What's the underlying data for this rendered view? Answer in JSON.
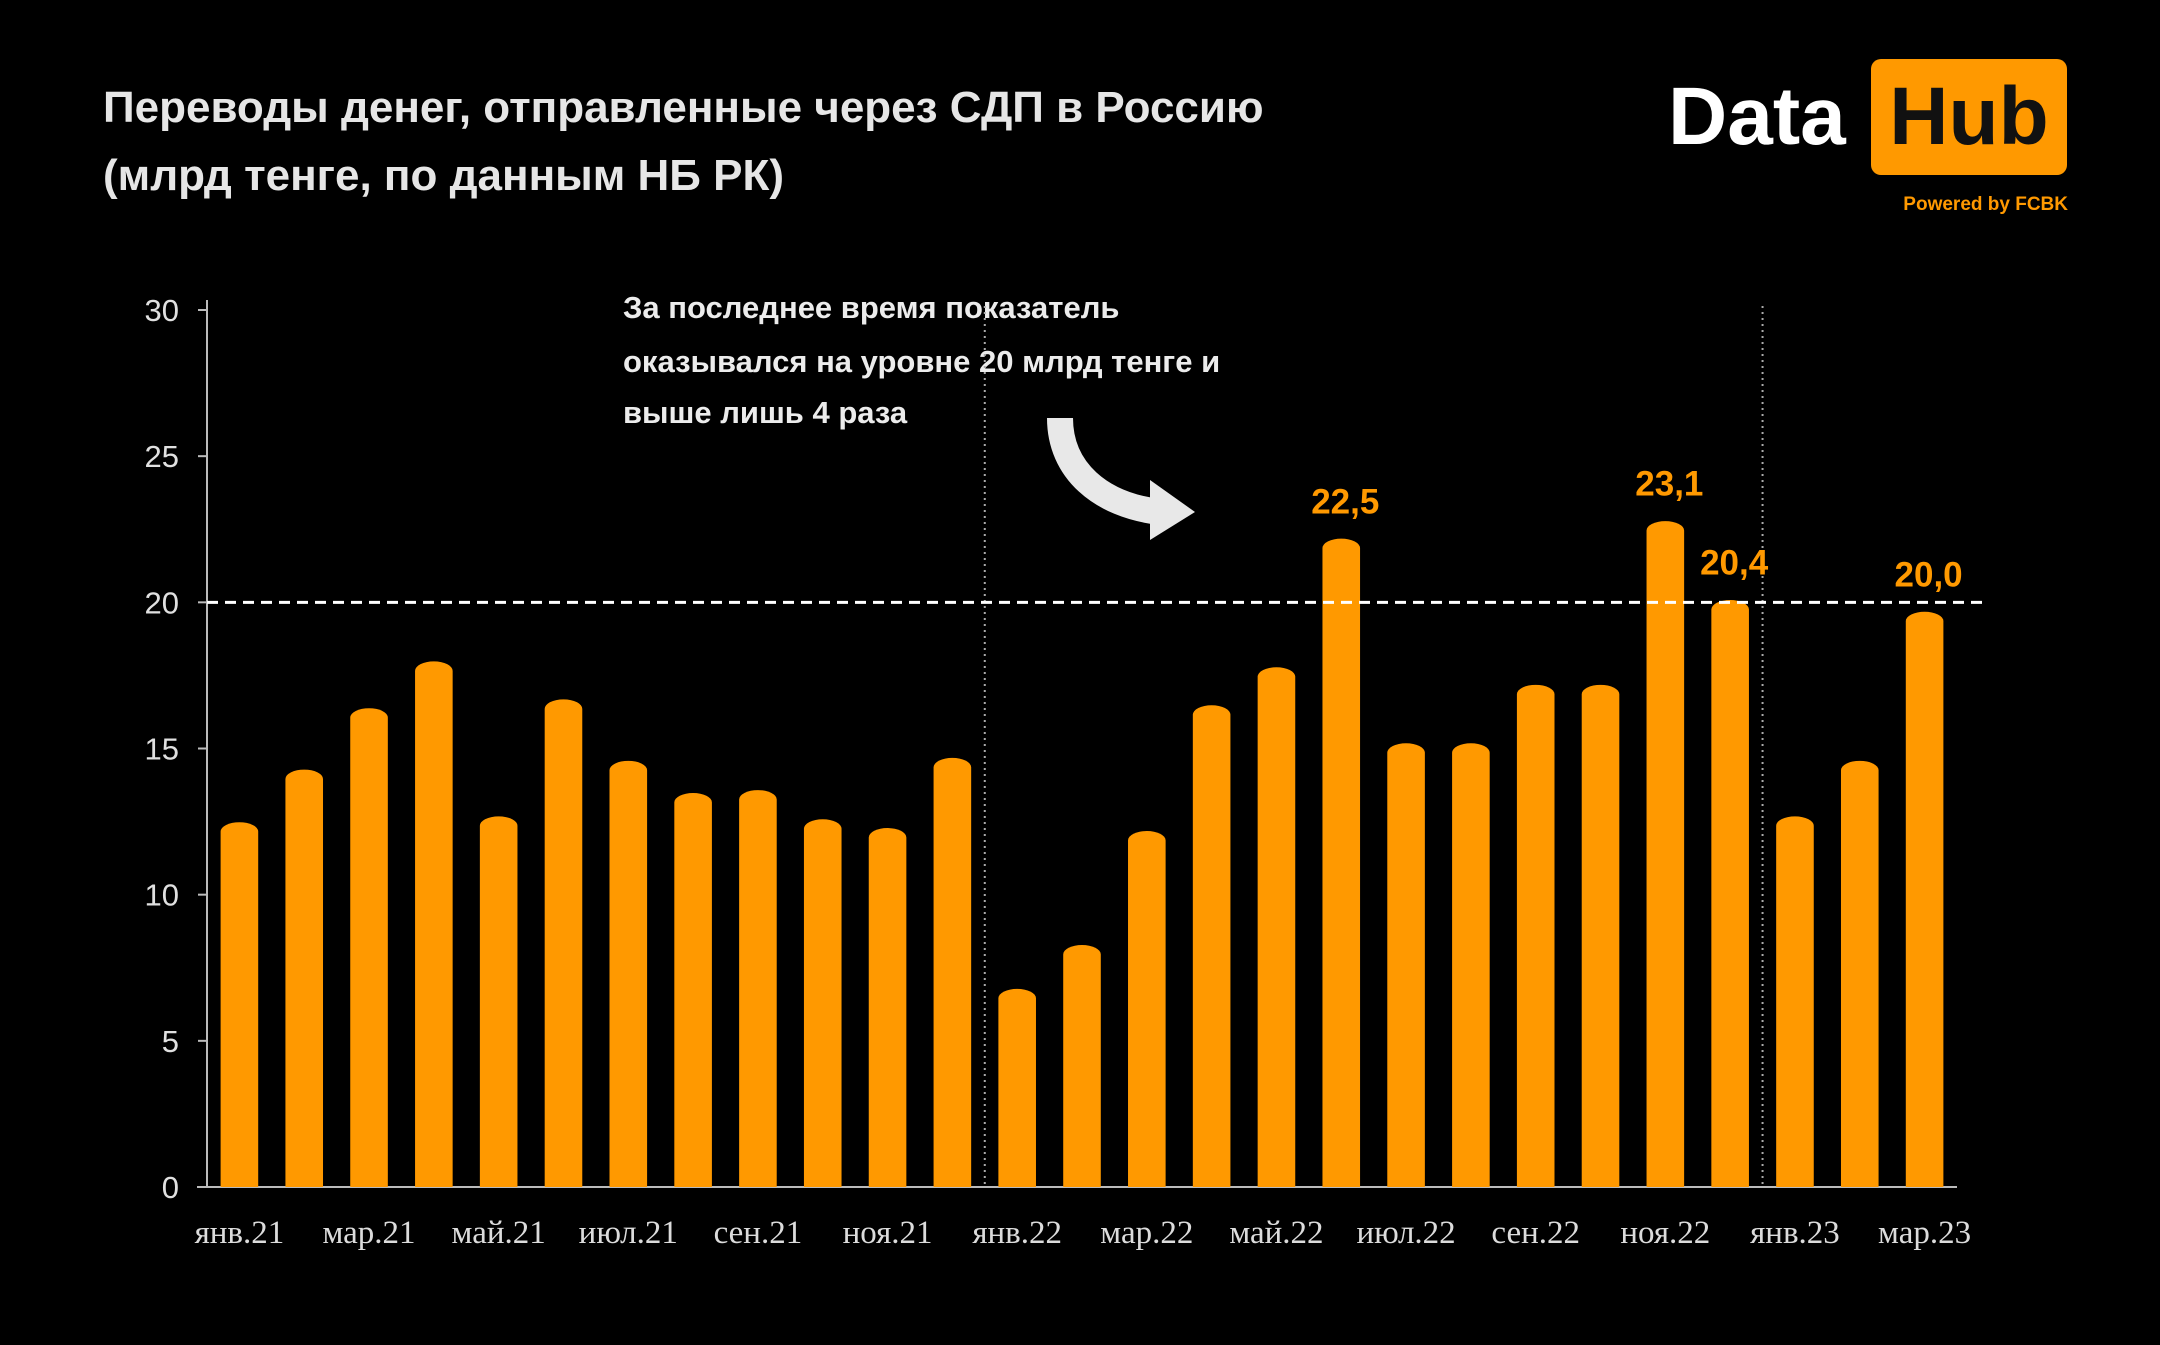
{
  "header": {
    "logo_left": "Data",
    "logo_right": "Hub",
    "logo_tagline": "Powered by FCBK"
  },
  "chart_data": {
    "type": "bar",
    "title_lines": [
      "Переводы денег, отправленные через СДП в Россию",
      "(млрд тенге, по данным НБ РК)"
    ],
    "annotation_lines": [
      "За последнее время показатель",
      "оказывался на уровне 20 млрд тенге и",
      "выше лишь 4 раза"
    ],
    "categories": [
      "янв.21",
      null,
      "мар.21",
      null,
      "май.21",
      null,
      "июл.21",
      null,
      "сен.21",
      null,
      "ноя.21",
      null,
      "янв.22",
      null,
      "мар.22",
      null,
      "май.22",
      null,
      "июл.22",
      null,
      "сен.22",
      null,
      "ноя.22",
      null,
      "янв.23",
      null,
      "мар.23"
    ],
    "values": [
      12.8,
      14.6,
      16.7,
      18.3,
      13.0,
      17.0,
      14.9,
      13.8,
      13.9,
      12.9,
      12.6,
      15.0,
      7.1,
      8.6,
      12.5,
      16.8,
      18.1,
      22.5,
      15.5,
      15.5,
      17.5,
      17.5,
      23.1,
      20.4,
      13.0,
      14.9,
      20.0
    ],
    "value_labels": [
      null,
      null,
      null,
      null,
      null,
      null,
      null,
      null,
      null,
      null,
      null,
      null,
      null,
      null,
      null,
      null,
      null,
      "22,5",
      null,
      null,
      null,
      null,
      "23,1",
      "20,4",
      null,
      null,
      "20,0"
    ],
    "color": "#ff9900",
    "ylim": [
      0,
      30
    ],
    "yticks": [
      0,
      5,
      10,
      15,
      20,
      25,
      30
    ],
    "reference_line": 20,
    "grid": false
  }
}
